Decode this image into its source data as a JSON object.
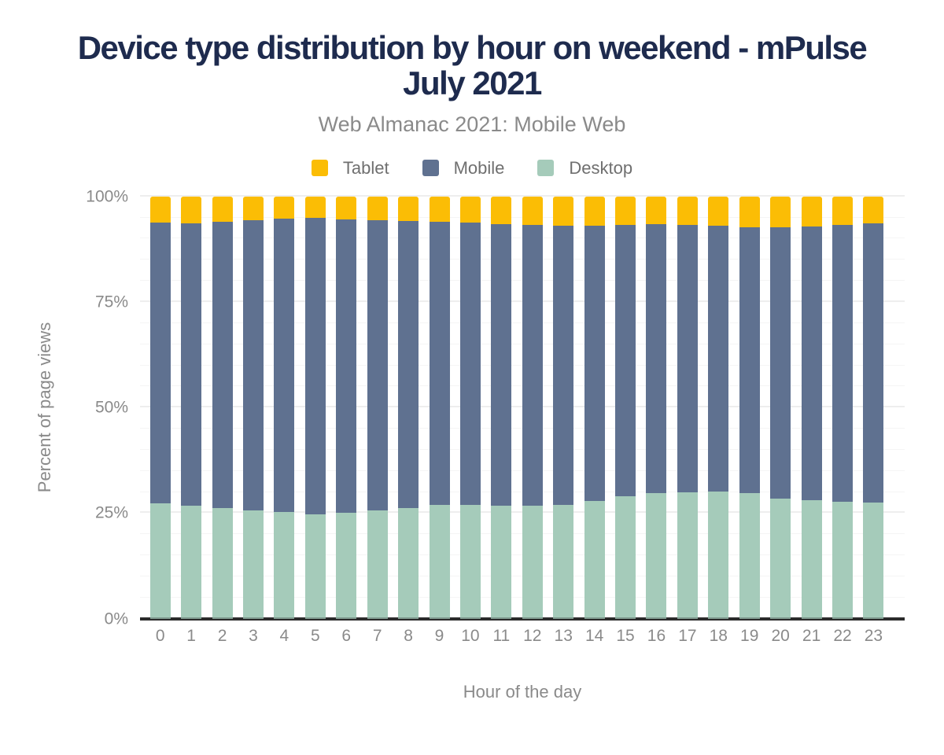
{
  "header": {
    "title": "Device type distribution by hour on weekend - mPulse July 2021",
    "subtitle": "Web Almanac 2021: Mobile Web"
  },
  "colors": {
    "title_navy": "#1E2B4E",
    "subtitle_gray": "#8A8A8A",
    "tick_label_gray": "#8A8A8A",
    "legend_label_gray": "#6F6F6F",
    "axis_line": "#2B2B2B",
    "gridline": "#F2F2F2",
    "tablet": "#FBBD05",
    "mobile": "#5F7190",
    "desktop": "#A5CBBA",
    "background": "#FFFFFF"
  },
  "legend": [
    {
      "label": "Tablet",
      "color": "#FBBD05"
    },
    {
      "label": "Mobile",
      "color": "#5F7190"
    },
    {
      "label": "Desktop",
      "color": "#A5CBBA"
    }
  ],
  "chart_data": {
    "type": "bar",
    "stacked": true,
    "title": "Device type distribution by hour on weekend - mPulse July 2021",
    "subtitle": "Web Almanac 2021: Mobile Web",
    "xlabel": "Hour of the day",
    "ylabel": "Percent of page views",
    "units": "percent of page views",
    "categories": [
      "0",
      "1",
      "2",
      "3",
      "4",
      "5",
      "6",
      "7",
      "8",
      "9",
      "10",
      "11",
      "12",
      "13",
      "14",
      "15",
      "16",
      "17",
      "18",
      "19",
      "20",
      "21",
      "22",
      "23"
    ],
    "stack_order_bottom_to_top": [
      "Desktop",
      "Mobile",
      "Tablet"
    ],
    "series": [
      {
        "name": "Desktop",
        "color": "#A5CBBA",
        "values": [
          27.4,
          26.7,
          26.3,
          25.7,
          25.3,
          24.8,
          25.0,
          25.6,
          26.3,
          27.0,
          26.9,
          26.7,
          26.8,
          27.0,
          27.9,
          29.0,
          29.7,
          30.0,
          30.2,
          29.7,
          28.4,
          28.0,
          27.7,
          27.5
        ]
      },
      {
        "name": "Mobile",
        "color": "#5F7190",
        "values": [
          66.5,
          67.0,
          67.7,
          68.6,
          69.4,
          70.1,
          69.6,
          68.7,
          67.8,
          67.0,
          66.9,
          66.8,
          66.4,
          66.0,
          65.1,
          64.2,
          63.7,
          63.3,
          62.8,
          62.9,
          64.3,
          64.9,
          65.6,
          66.1
        ]
      },
      {
        "name": "Tablet",
        "color": "#FBBD05",
        "values": [
          6.1,
          6.3,
          6.0,
          5.7,
          5.3,
          5.1,
          5.4,
          5.7,
          5.9,
          6.0,
          6.2,
          6.5,
          6.8,
          7.0,
          7.0,
          6.8,
          6.6,
          6.7,
          7.0,
          7.4,
          7.3,
          7.1,
          6.7,
          6.4
        ]
      }
    ],
    "ylim": [
      0,
      100
    ],
    "yticks": [
      {
        "value": 0,
        "label": "0%"
      },
      {
        "value": 25,
        "label": "25%"
      },
      {
        "value": 50,
        "label": "50%"
      },
      {
        "value": 75,
        "label": "75%"
      },
      {
        "value": 100,
        "label": "100%"
      }
    ],
    "grid": {
      "horizontal": true,
      "minor_step_pct": 5,
      "major_step_pct": 25
    },
    "legend_position": "top"
  }
}
